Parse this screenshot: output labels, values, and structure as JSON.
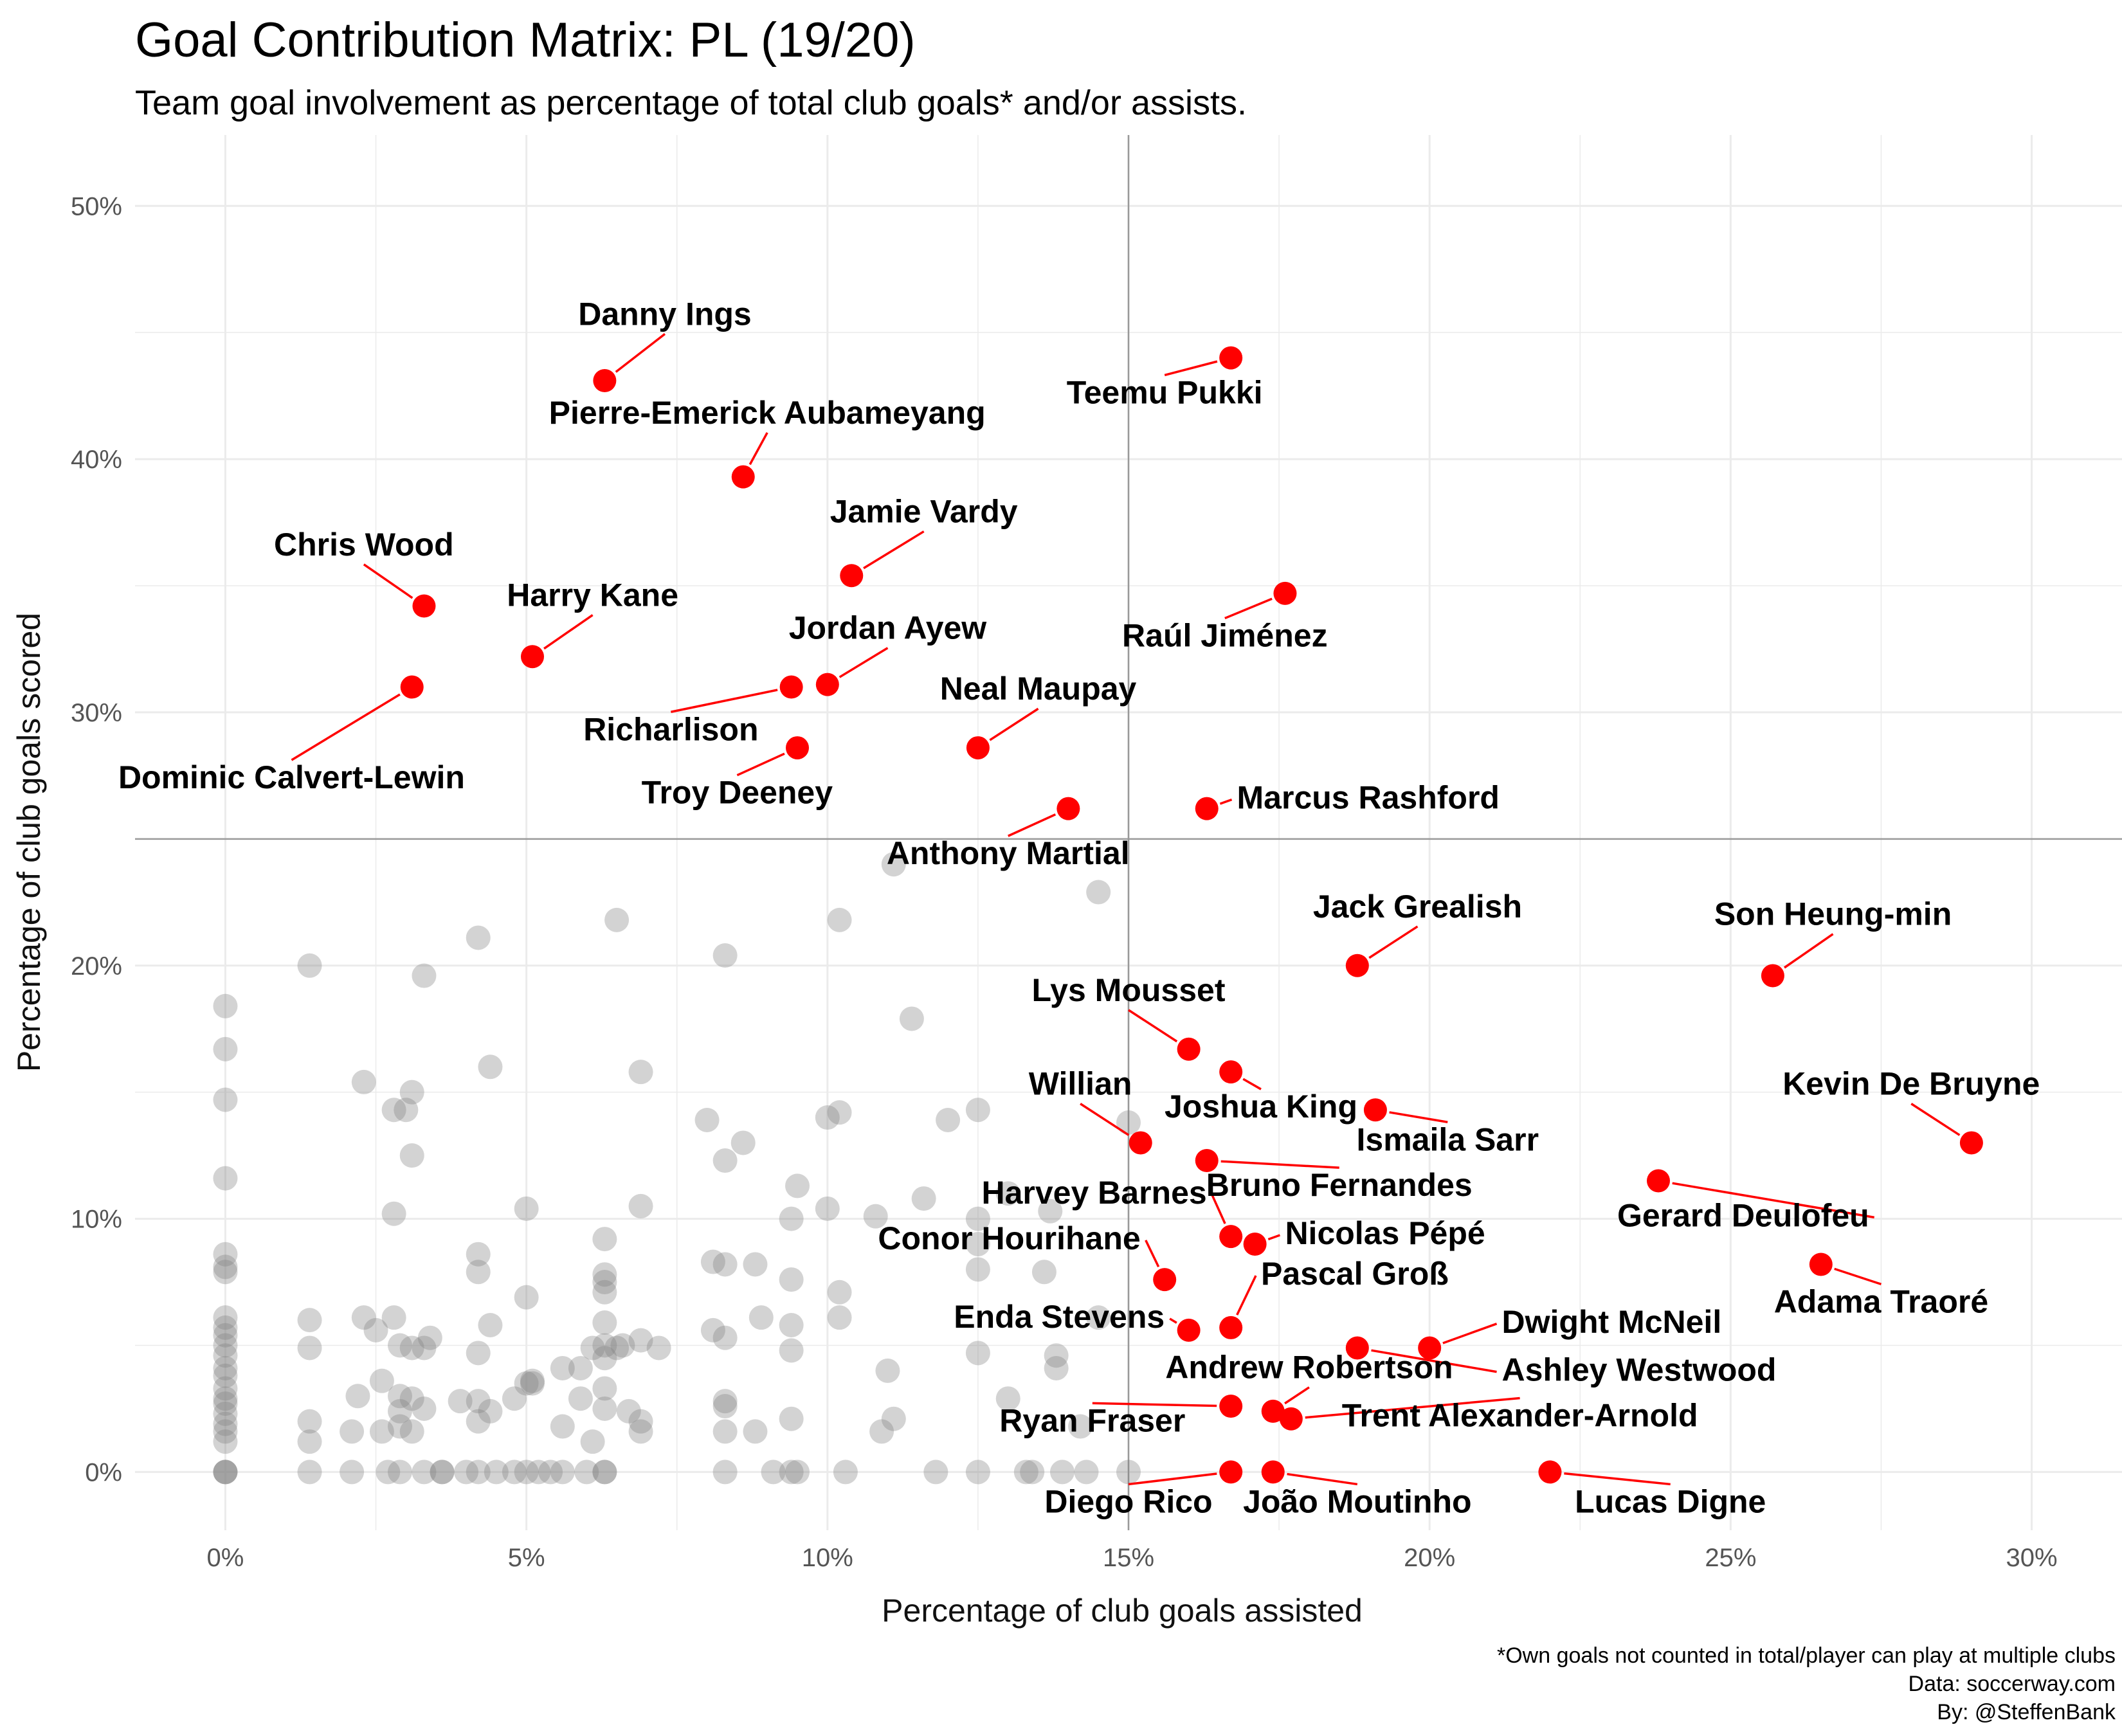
{
  "chart_data": {
    "type": "scatter",
    "title": "Goal Contribution Matrix: PL (19/20)",
    "subtitle": "Team goal involvement as percentage of total club goals* and/or assists.",
    "xlabel": "Percentage of club goals assisted",
    "ylabel": "Percentage of club goals scored",
    "xlim": [
      -1.5,
      31.5
    ],
    "ylim": [
      -2.3,
      52.8
    ],
    "x_ticks": [
      0,
      5,
      10,
      15,
      20,
      25,
      30
    ],
    "x_tick_labels": [
      "0%",
      "5%",
      "10%",
      "15%",
      "20%",
      "25%",
      "30%"
    ],
    "y_ticks": [
      0,
      10,
      20,
      30,
      40,
      50
    ],
    "y_tick_labels": [
      "0%",
      "10%",
      "20%",
      "30%",
      "40%",
      "50%"
    ],
    "grid": true,
    "reference_lines": {
      "x": 15,
      "y": 25
    },
    "colors": {
      "highlight": "#ff0000",
      "other": "#808080",
      "grid": "#ebebeb",
      "refline": "#999999"
    },
    "caption": [
      "*Own goals not counted in total/player can play at multiple clubs",
      "Data: soccerway.com",
      "By: @SteffenBank"
    ],
    "highlighted": [
      {
        "label": "Danny Ings",
        "x": 6.3,
        "y": 43.1,
        "lx": 7.3,
        "ly": 45.3,
        "anchor": "middle"
      },
      {
        "label": "Teemu Pukki",
        "x": 16.7,
        "y": 44.0,
        "lx": 15.6,
        "ly": 42.2,
        "anchor": "middle"
      },
      {
        "label": "Pierre-Emerick Aubameyang",
        "x": 8.6,
        "y": 39.3,
        "lx": 9.0,
        "ly": 41.4,
        "anchor": "middle"
      },
      {
        "label": "Jamie Vardy",
        "x": 10.4,
        "y": 35.4,
        "lx": 11.6,
        "ly": 37.5,
        "anchor": "middle"
      },
      {
        "label": "Chris Wood",
        "x": 3.3,
        "y": 34.2,
        "lx": 2.3,
        "ly": 36.2,
        "anchor": "middle"
      },
      {
        "label": "Raúl Jiménez",
        "x": 17.6,
        "y": 34.7,
        "lx": 16.6,
        "ly": 32.6,
        "anchor": "middle"
      },
      {
        "label": "Harry Kane",
        "x": 5.1,
        "y": 32.2,
        "lx": 6.1,
        "ly": 34.2,
        "anchor": "middle"
      },
      {
        "label": "Jordan Ayew",
        "x": 10.0,
        "y": 31.1,
        "lx": 11.0,
        "ly": 32.9,
        "anchor": "middle"
      },
      {
        "label": "Richarlison",
        "x": 9.4,
        "y": 31.0,
        "lx": 7.4,
        "ly": 28.9,
        "anchor": "middle"
      },
      {
        "label": "Dominic Calvert-Lewin",
        "x": 3.1,
        "y": 31.0,
        "lx": 1.1,
        "ly": 27.0,
        "anchor": "middle"
      },
      {
        "label": "Neal Maupay",
        "x": 12.5,
        "y": 28.6,
        "lx": 13.5,
        "ly": 30.5,
        "anchor": "middle"
      },
      {
        "label": "Troy Deeney",
        "x": 9.5,
        "y": 28.6,
        "lx": 8.5,
        "ly": 26.4,
        "anchor": "middle"
      },
      {
        "label": "Anthony Martial",
        "x": 14.0,
        "y": 26.2,
        "lx": 13.0,
        "ly": 24.0,
        "anchor": "middle"
      },
      {
        "label": "Marcus Rashford",
        "x": 16.3,
        "y": 26.2,
        "lx": 16.8,
        "ly": 26.2,
        "anchor": "start"
      },
      {
        "label": "Jack Grealish",
        "x": 18.8,
        "y": 20.0,
        "lx": 19.8,
        "ly": 21.9,
        "anchor": "middle"
      },
      {
        "label": "Son Heung-min",
        "x": 25.7,
        "y": 19.6,
        "lx": 26.7,
        "ly": 21.6,
        "anchor": "middle"
      },
      {
        "label": "Lys Mousset",
        "x": 16.0,
        "y": 16.7,
        "lx": 15.0,
        "ly": 18.6,
        "anchor": "middle"
      },
      {
        "label": "Joshua King",
        "x": 16.7,
        "y": 15.8,
        "lx": 17.2,
        "ly": 14.0,
        "anchor": "middle"
      },
      {
        "label": "Ismaila Sarr",
        "x": 19.1,
        "y": 14.3,
        "lx": 20.3,
        "ly": 12.7,
        "anchor": "middle"
      },
      {
        "label": "Kevin De Bruyne",
        "x": 29.0,
        "y": 13.0,
        "lx": 28.0,
        "ly": 14.9,
        "anchor": "middle"
      },
      {
        "label": "Willian",
        "x": 15.2,
        "y": 13.0,
        "lx": 14.2,
        "ly": 14.9,
        "anchor": "middle"
      },
      {
        "label": "Bruno Fernandes",
        "x": 16.3,
        "y": 12.3,
        "lx": 18.5,
        "ly": 10.9,
        "anchor": "middle"
      },
      {
        "label": "Gerard Deulofeu",
        "x": 23.8,
        "y": 11.5,
        "lx": 27.3,
        "ly": 9.7,
        "anchor": "end"
      },
      {
        "label": "Harvey Barnes",
        "x": 16.7,
        "y": 9.3,
        "lx": 16.3,
        "ly": 10.6,
        "anchor": "end"
      },
      {
        "label": "Nicolas Pépé",
        "x": 17.1,
        "y": 9.0,
        "lx": 17.6,
        "ly": 9.0,
        "anchor": "start"
      },
      {
        "label": "Adama Traoré",
        "x": 26.5,
        "y": 8.2,
        "lx": 27.5,
        "ly": 6.3,
        "anchor": "middle"
      },
      {
        "label": "Conor Hourihane",
        "x": 15.6,
        "y": 7.6,
        "lx": 15.2,
        "ly": 8.8,
        "anchor": "end"
      },
      {
        "label": "Pascal Groß",
        "x": 16.7,
        "y": 5.7,
        "lx": 17.2,
        "ly": 7.4,
        "anchor": "start"
      },
      {
        "label": "Enda Stevens",
        "x": 16.0,
        "y": 5.6,
        "lx": 15.6,
        "ly": 5.7,
        "anchor": "end"
      },
      {
        "label": "Dwight McNeil",
        "x": 20.0,
        "y": 4.9,
        "lx": 21.2,
        "ly": 5.5,
        "anchor": "start"
      },
      {
        "label": "Ashley Westwood",
        "x": 18.8,
        "y": 4.9,
        "lx": 21.2,
        "ly": 3.6,
        "anchor": "start"
      },
      {
        "label": "Andrew Robertson",
        "x": 17.4,
        "y": 2.4,
        "lx": 18.0,
        "ly": 3.7,
        "anchor": "middle"
      },
      {
        "label": "Ryan Fraser",
        "x": 16.7,
        "y": 2.6,
        "lx": 14.4,
        "ly": 1.6,
        "anchor": "middle"
      },
      {
        "label": "Trent Alexander-Arnold",
        "x": 17.7,
        "y": 2.1,
        "lx": 21.5,
        "ly": 1.8,
        "anchor": "middle"
      },
      {
        "label": "Diego Rico",
        "x": 16.7,
        "y": 0.0,
        "lx": 15.0,
        "ly": -1.6,
        "anchor": "middle"
      },
      {
        "label": "João Moutinho",
        "x": 17.4,
        "y": 0.0,
        "lx": 18.8,
        "ly": -1.6,
        "anchor": "middle"
      },
      {
        "label": "Lucas Digne",
        "x": 22.0,
        "y": 0.0,
        "lx": 24.0,
        "ly": -1.6,
        "anchor": "middle"
      }
    ],
    "others": [
      [
        0,
        18.4
      ],
      [
        0,
        16.7
      ],
      [
        0,
        14.7
      ],
      [
        0,
        11.6
      ],
      [
        0,
        8.6
      ],
      [
        0,
        8.1
      ],
      [
        0,
        7.9
      ],
      [
        0,
        6.1
      ],
      [
        0,
        5.7
      ],
      [
        0,
        5.4
      ],
      [
        0,
        5.0
      ],
      [
        0,
        4.6
      ],
      [
        0,
        4.1
      ],
      [
        0,
        3.8
      ],
      [
        0,
        3.3
      ],
      [
        0,
        2.9
      ],
      [
        0,
        2.7
      ],
      [
        0,
        2.3
      ],
      [
        0,
        1.9
      ],
      [
        0,
        1.6
      ],
      [
        0,
        1.2
      ],
      [
        0,
        0
      ],
      [
        0,
        0
      ],
      [
        0,
        0
      ],
      [
        1.4,
        20.0
      ],
      [
        1.4,
        6.0
      ],
      [
        1.4,
        4.9
      ],
      [
        1.4,
        2.0
      ],
      [
        1.4,
        1.2
      ],
      [
        1.4,
        0
      ],
      [
        2.1,
        1.6
      ],
      [
        2.1,
        0
      ],
      [
        2.2,
        3.0
      ],
      [
        2.3,
        6.1
      ],
      [
        2.3,
        15.4
      ],
      [
        2.5,
        5.6
      ],
      [
        2.6,
        3.6
      ],
      [
        2.6,
        1.6
      ],
      [
        2.7,
        0
      ],
      [
        2.8,
        10.2
      ],
      [
        2.8,
        14.3
      ],
      [
        2.8,
        6.1
      ],
      [
        2.9,
        5.0
      ],
      [
        2.9,
        3.0
      ],
      [
        2.9,
        2.4
      ],
      [
        2.9,
        1.8
      ],
      [
        2.9,
        0
      ],
      [
        3.0,
        14.3
      ],
      [
        3.1,
        15.0
      ],
      [
        3.1,
        12.5
      ],
      [
        3.1,
        4.9
      ],
      [
        3.1,
        2.9
      ],
      [
        3.1,
        1.6
      ],
      [
        3.3,
        4.9
      ],
      [
        3.3,
        2.5
      ],
      [
        3.3,
        0
      ],
      [
        3.3,
        19.6
      ],
      [
        3.4,
        5.3
      ],
      [
        3.6,
        0
      ],
      [
        3.6,
        0
      ],
      [
        3.9,
        2.8
      ],
      [
        4.0,
        0
      ],
      [
        4.2,
        21.1
      ],
      [
        4.2,
        8.6
      ],
      [
        4.2,
        7.9
      ],
      [
        4.2,
        4.7
      ],
      [
        4.2,
        2.8
      ],
      [
        4.2,
        2.0
      ],
      [
        4.2,
        0
      ],
      [
        4.4,
        16.0
      ],
      [
        4.4,
        5.8
      ],
      [
        4.4,
        2.4
      ],
      [
        4.5,
        0
      ],
      [
        4.8,
        0
      ],
      [
        4.8,
        2.9
      ],
      [
        5.0,
        6.9
      ],
      [
        5.0,
        0
      ],
      [
        5.0,
        10.4
      ],
      [
        5.0,
        3.5
      ],
      [
        5.1,
        3.5
      ],
      [
        5.1,
        3.6
      ],
      [
        5.2,
        0
      ],
      [
        5.4,
        0
      ],
      [
        5.6,
        4.1
      ],
      [
        5.6,
        1.8
      ],
      [
        5.6,
        0
      ],
      [
        5.9,
        4.1
      ],
      [
        5.9,
        2.9
      ],
      [
        6.0,
        0
      ],
      [
        6.1,
        4.9
      ],
      [
        6.1,
        1.2
      ],
      [
        6.3,
        9.2
      ],
      [
        6.3,
        7.8
      ],
      [
        6.3,
        7.5
      ],
      [
        6.3,
        7.1
      ],
      [
        6.3,
        5.9
      ],
      [
        6.3,
        5.0
      ],
      [
        6.3,
        4.5
      ],
      [
        6.3,
        3.3
      ],
      [
        6.3,
        2.5
      ],
      [
        6.3,
        0
      ],
      [
        6.3,
        0
      ],
      [
        6.5,
        21.8
      ],
      [
        6.5,
        4.9
      ],
      [
        6.6,
        5.0
      ],
      [
        6.7,
        2.4
      ],
      [
        6.9,
        15.8
      ],
      [
        6.9,
        10.5
      ],
      [
        6.9,
        5.2
      ],
      [
        6.9,
        2.0
      ],
      [
        6.9,
        1.6
      ],
      [
        7.2,
        4.9
      ],
      [
        8.0,
        13.9
      ],
      [
        8.1,
        8.3
      ],
      [
        8.1,
        5.6
      ],
      [
        8.3,
        20.4
      ],
      [
        8.3,
        12.3
      ],
      [
        8.3,
        8.2
      ],
      [
        8.3,
        5.3
      ],
      [
        8.3,
        2.8
      ],
      [
        8.3,
        2.6
      ],
      [
        8.3,
        1.6
      ],
      [
        8.3,
        0
      ],
      [
        8.6,
        13.0
      ],
      [
        8.8,
        8.2
      ],
      [
        8.8,
        1.6
      ],
      [
        8.9,
        6.1
      ],
      [
        9.1,
        0
      ],
      [
        9.4,
        10.0
      ],
      [
        9.4,
        7.6
      ],
      [
        9.4,
        5.8
      ],
      [
        9.4,
        4.8
      ],
      [
        9.4,
        2.1
      ],
      [
        9.4,
        0
      ],
      [
        9.5,
        11.3
      ],
      [
        9.5,
        0
      ],
      [
        10.0,
        10.4
      ],
      [
        10.0,
        14.0
      ],
      [
        10.2,
        14.2
      ],
      [
        10.2,
        21.8
      ],
      [
        10.2,
        6.1
      ],
      [
        10.2,
        7.1
      ],
      [
        10.3,
        0
      ],
      [
        10.8,
        10.1
      ],
      [
        10.9,
        1.6
      ],
      [
        11.0,
        4.0
      ],
      [
        11.1,
        2.1
      ],
      [
        11.1,
        24.0
      ],
      [
        11.4,
        17.9
      ],
      [
        11.6,
        10.8
      ],
      [
        11.8,
        0
      ],
      [
        12.0,
        13.9
      ],
      [
        12.5,
        14.3
      ],
      [
        12.5,
        10.0
      ],
      [
        12.5,
        9.0
      ],
      [
        12.5,
        8.0
      ],
      [
        12.5,
        4.7
      ],
      [
        12.5,
        0
      ],
      [
        13.0,
        11.0
      ],
      [
        13.0,
        2.9
      ],
      [
        13.3,
        0
      ],
      [
        13.4,
        0
      ],
      [
        13.6,
        7.9
      ],
      [
        13.7,
        10.3
      ],
      [
        13.8,
        4.6
      ],
      [
        13.8,
        4.1
      ],
      [
        13.9,
        0
      ],
      [
        14.2,
        1.8
      ],
      [
        14.3,
        0
      ],
      [
        14.5,
        6.1
      ],
      [
        14.5,
        22.9
      ],
      [
        15.0,
        13.8
      ],
      [
        15.0,
        0
      ]
    ]
  }
}
